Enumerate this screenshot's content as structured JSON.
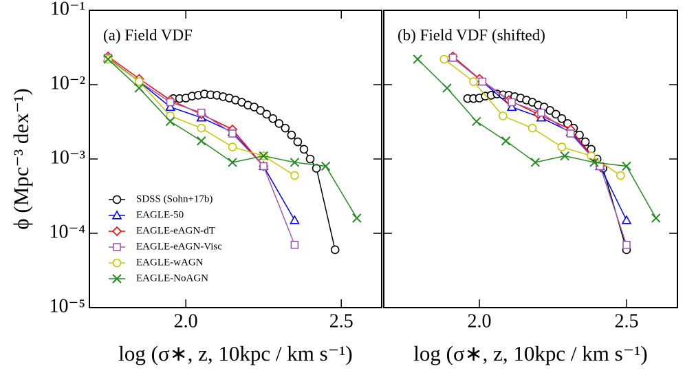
{
  "chart_data": [
    {
      "type": "line",
      "title": "(a) Field VDF",
      "xlabel": "log (σ∗, z, 10kpc / km s⁻¹)",
      "ylabel": "ϕ (Mpc⁻³ dex⁻¹)",
      "yscale": "log",
      "xlim": [
        1.69,
        2.63
      ],
      "ylim": [
        1e-05,
        0.1
      ],
      "xticks": [
        {
          "value": 2,
          "label": "2.0"
        },
        2.5
      ],
      "yticks": [
        {
          "value": 1e-05,
          "label": "10⁻⁵"
        },
        {
          "value": 0.0001,
          "label": "10⁻⁴"
        },
        {
          "value": 0.001,
          "label": "10⁻³"
        },
        {
          "value": 0.01,
          "label": "10⁻²"
        },
        {
          "value": 0.1,
          "label": "10⁻¹"
        }
      ],
      "legend": "lower left",
      "series": [
        {
          "name": "SDSS (Sohn+17b)",
          "color": "#000000",
          "marker": "o",
          "x": [
            1.96,
            1.98,
            2.0,
            2.02,
            2.04,
            2.06,
            2.08,
            2.1,
            2.12,
            2.14,
            2.16,
            2.18,
            2.2,
            2.22,
            2.24,
            2.26,
            2.28,
            2.3,
            2.32,
            2.34,
            2.36,
            2.38,
            2.4,
            2.42,
            2.48
          ],
          "values": [
            0.0065,
            0.0065,
            0.0066,
            0.007,
            0.0072,
            0.0075,
            0.0073,
            0.0072,
            0.0069,
            0.0066,
            0.0062,
            0.0058,
            0.0053,
            0.005,
            0.0045,
            0.004,
            0.0035,
            0.003,
            0.0026,
            0.0021,
            0.0017,
            0.00135,
            0.001,
            0.00075,
            6e-05
          ]
        },
        {
          "name": "EAGLE-50",
          "color": "#0000ff",
          "marker": "^",
          "x": [
            1.75,
            1.85,
            1.95,
            2.05,
            2.15,
            2.25,
            2.35
          ],
          "values": [
            0.023,
            0.011,
            0.005,
            0.0036,
            0.0023,
            0.0008,
            0.00015
          ]
        },
        {
          "name": "EAGLE-eAGN-dT",
          "color": "#ff0000",
          "marker": "D",
          "x": [
            1.75,
            1.85,
            1.95,
            2.05,
            2.15,
            2.25
          ],
          "values": [
            0.024,
            0.012,
            0.0062,
            0.004,
            0.0025,
            0.0008
          ]
        },
        {
          "name": "EAGLE-eAGN-Visc",
          "color": "#9b59b6",
          "marker": "s",
          "x": [
            1.75,
            1.85,
            1.95,
            2.05,
            2.15,
            2.25,
            2.35
          ],
          "values": [
            0.023,
            0.011,
            0.0058,
            0.0042,
            0.0022,
            0.0008,
            7e-05
          ]
        },
        {
          "name": "EAGLE-wAGN",
          "color": "#c8c800",
          "marker": "o",
          "x": [
            1.75,
            1.85,
            1.95,
            2.05,
            2.15,
            2.25,
            2.35
          ],
          "values": [
            0.022,
            0.011,
            0.0038,
            0.0026,
            0.00145,
            0.0011,
            0.0006
          ]
        },
        {
          "name": "EAGLE-NoAGN",
          "color": "#228b22",
          "marker": "x",
          "x": [
            1.75,
            1.85,
            1.95,
            2.05,
            2.15,
            2.25,
            2.35,
            2.45,
            2.55
          ],
          "values": [
            0.022,
            0.009,
            0.0032,
            0.00175,
            0.0009,
            0.0011,
            0.0009,
            0.0008,
            0.00016
          ]
        }
      ]
    },
    {
      "type": "line",
      "title": "(b) Field VDF (shifted)",
      "xlabel": "log (σ∗, z, 10kpc / km s⁻¹)",
      "yscale": "log",
      "xlim": [
        1.675,
        2.673
      ],
      "ylim": [
        1e-05,
        0.1
      ],
      "xticks": [
        {
          "value": 2,
          "label": "2.0"
        },
        2.5
      ],
      "yticks": [
        1e-05,
        0.0001,
        0.001,
        0.01,
        0.1
      ],
      "series": [
        {
          "color": "#000000",
          "marker": "o",
          "x": [
            1.96,
            1.98,
            2.0,
            2.02,
            2.04,
            2.06,
            2.08,
            2.1,
            2.12,
            2.14,
            2.16,
            2.18,
            2.2,
            2.22,
            2.24,
            2.26,
            2.28,
            2.3,
            2.32,
            2.34,
            2.36,
            2.38,
            2.4,
            2.42,
            2.5
          ],
          "values": [
            0.0065,
            0.0065,
            0.0066,
            0.007,
            0.0072,
            0.0075,
            0.0073,
            0.0072,
            0.0069,
            0.0066,
            0.0062,
            0.0058,
            0.0053,
            0.005,
            0.0045,
            0.004,
            0.0035,
            0.003,
            0.0026,
            0.0021,
            0.0017,
            0.00135,
            0.001,
            0.00075,
            6e-05
          ]
        },
        {
          "color": "#0000ff",
          "marker": "^",
          "x": [
            1.91,
            2.01,
            2.11,
            2.21,
            2.31,
            2.41,
            2.5
          ],
          "values": [
            0.023,
            0.011,
            0.005,
            0.0036,
            0.0023,
            0.0008,
            0.00015
          ]
        },
        {
          "color": "#ff0000",
          "marker": "D",
          "x": [
            1.91,
            2.0,
            2.1,
            2.2,
            2.31,
            2.41
          ],
          "values": [
            0.024,
            0.012,
            0.0062,
            0.004,
            0.0025,
            0.0008
          ]
        },
        {
          "color": "#9b59b6",
          "marker": "s",
          "x": [
            1.91,
            2.01,
            2.11,
            2.21,
            2.31,
            2.41,
            2.5
          ],
          "values": [
            0.023,
            0.011,
            0.0058,
            0.0042,
            0.0022,
            0.0008,
            7e-05
          ]
        },
        {
          "color": "#c8c800",
          "marker": "o",
          "x": [
            1.88,
            1.98,
            2.08,
            2.18,
            2.28,
            2.38,
            2.48
          ],
          "values": [
            0.022,
            0.011,
            0.0038,
            0.0026,
            0.00145,
            0.0011,
            0.0006
          ]
        },
        {
          "color": "#228b22",
          "marker": "x",
          "x": [
            1.79,
            1.89,
            1.99,
            2.09,
            2.19,
            2.29,
            2.39,
            2.5,
            2.6
          ],
          "values": [
            0.022,
            0.009,
            0.0032,
            0.00175,
            0.0009,
            0.0011,
            0.0009,
            0.0008,
            0.00016
          ]
        }
      ]
    }
  ]
}
